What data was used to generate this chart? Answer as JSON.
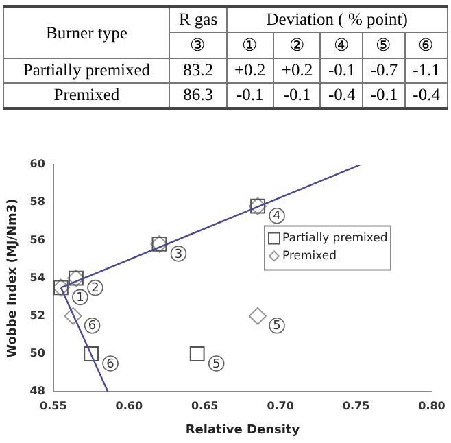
{
  "chart_data": [
    {
      "type": "heatmap",
      "annotations": [
        "Burner type",
        "R gas",
        "Deviation ( % point)"
      ],
      "categories": [
        "③",
        "①",
        "②",
        "④",
        "⑤",
        "⑥"
      ],
      "y_categories": [
        "Partially premixed",
        "Premixed"
      ],
      "cells": [
        [
          83.2,
          0.2,
          0.2,
          -0.1,
          -0.7,
          -1.1
        ],
        [
          86.3,
          -0.1,
          -0.1,
          -0.4,
          -0.1,
          -0.4
        ]
      ],
      "cell_labels": [
        [
          "83.2",
          "+0.2",
          "+0.2",
          "-0.1",
          "-0.7",
          "-1.1"
        ],
        [
          "86.3",
          "-0.1",
          "-0.1",
          "-0.4",
          "-0.1",
          "-0.4"
        ]
      ]
    },
    {
      "type": "scatter",
      "xlabel": "Relative Density",
      "ylabel": "Wobbe Index (MJ/Nm3)",
      "xlim": [
        0.55,
        0.8
      ],
      "xticks": [
        0.55,
        {
          "value": 0.6,
          "label": "0.60"
        },
        0.65,
        {
          "value": 0.7,
          "label": "0.70"
        },
        0.75,
        {
          "value": 0.8,
          "label": "0.80"
        }
      ],
      "ylim": [
        48,
        60
      ],
      "yticks": [
        48,
        50,
        52,
        54,
        56,
        58,
        60
      ],
      "grid": false,
      "legend": "top right",
      "series": [
        {
          "name": "Partially premixed",
          "color": "#555555",
          "marker": "square",
          "x": [
            0.555,
            0.565,
            0.62,
            0.685,
            0.645,
            0.575
          ],
          "values": [
            53.5,
            54,
            55.8,
            57.8,
            50,
            50
          ]
        },
        {
          "name": "Premixed",
          "color": "#999999",
          "marker": "diamond",
          "x": [
            0.555,
            0.565,
            0.62,
            0.685,
            0.685,
            0.563
          ],
          "values": [
            53.5,
            54,
            55.8,
            57.8,
            52,
            52
          ]
        },
        {
          "type": "line",
          "color": "#4a4a9a",
          "marker": "none",
          "x": [
            0.555,
            0.753
          ],
          "values": [
            53.5,
            60
          ]
        },
        {
          "type": "line",
          "color": "#4a4a9a",
          "marker": "none",
          "x": [
            0.555,
            0.586
          ],
          "values": [
            53.5,
            48
          ]
        }
      ],
      "annotations": [
        {
          "text": "1",
          "x": 0.555,
          "y": 53.5
        },
        {
          "text": "2",
          "x": 0.565,
          "y": 54
        },
        {
          "text": "3",
          "x": 0.62,
          "y": 55.8
        },
        {
          "text": "4",
          "x": 0.685,
          "y": 57.8
        },
        {
          "text": "5",
          "x": 0.645,
          "y": 50
        },
        {
          "text": "6",
          "x": 0.575,
          "y": 50
        },
        {
          "text": "5",
          "x": 0.685,
          "y": 52
        },
        {
          "text": "6",
          "x": 0.563,
          "y": 52
        }
      ]
    }
  ]
}
